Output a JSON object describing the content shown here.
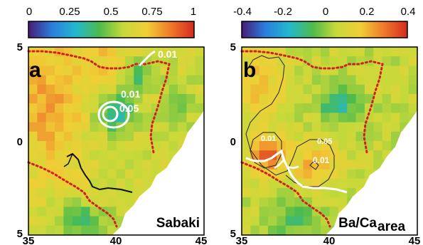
{
  "chart_data": [
    {
      "type": "heatmap",
      "panel_label": "a",
      "corner_label": "Sabaki",
      "colorbar": {
        "ticks": [
          "0",
          "0.25",
          "0.5",
          "0.75",
          "1"
        ],
        "range": [
          0,
          1
        ],
        "colors": [
          "#4a1a78",
          "#2a7fdc",
          "#22b7d0",
          "#4dbb4a",
          "#c8d93a",
          "#f0cf36",
          "#f07a2a",
          "#d42a20"
        ]
      },
      "x_ticks": [
        "35",
        "40",
        "45"
      ],
      "x_range": [
        35,
        45
      ],
      "y_ticks": [
        "5",
        "0",
        "5"
      ],
      "y_range": [
        5,
        -5
      ],
      "contour_labels": [
        {
          "text": "0.01",
          "lon": 42.0,
          "lat": 4.1
        },
        {
          "text": "0.01",
          "lon": 39.7,
          "lat": 2.2
        },
        {
          "text": "0.05",
          "lon": 39.8,
          "lat": 1.6
        }
      ],
      "field_description": "correlation field: high (orange) over west, green band near 40E 1.5N"
    },
    {
      "type": "heatmap",
      "panel_label": "b",
      "corner_label": "Ba/Ca",
      "corner_label_sub": "area",
      "colorbar": {
        "ticks": [
          "-0.4",
          "-0.2",
          "0",
          "0.2",
          "0.4"
        ],
        "range": [
          -0.4,
          0.4
        ],
        "colors": [
          "#4a1a78",
          "#2a7fdc",
          "#22b7d0",
          "#4dbb4a",
          "#c8d93a",
          "#f0cf36",
          "#f07a2a",
          "#d42a20"
        ]
      },
      "x_ticks": [
        "35",
        "40",
        "45"
      ],
      "x_range": [
        35,
        45
      ],
      "y_ticks": [
        "5",
        "0",
        "5"
      ],
      "y_range": [
        5,
        -5
      ],
      "contour_labels": [
        {
          "text": "0.01",
          "lon": 36.8,
          "lat": -0.1
        },
        {
          "text": "0.05",
          "lon": 40.2,
          "lat": -0.3
        },
        {
          "text": "0.01",
          "lon": 40.0,
          "lat": -1.5
        }
      ],
      "field_description": "correlation field: red maximum near 37E 1S, green band near 40E 2N"
    }
  ]
}
